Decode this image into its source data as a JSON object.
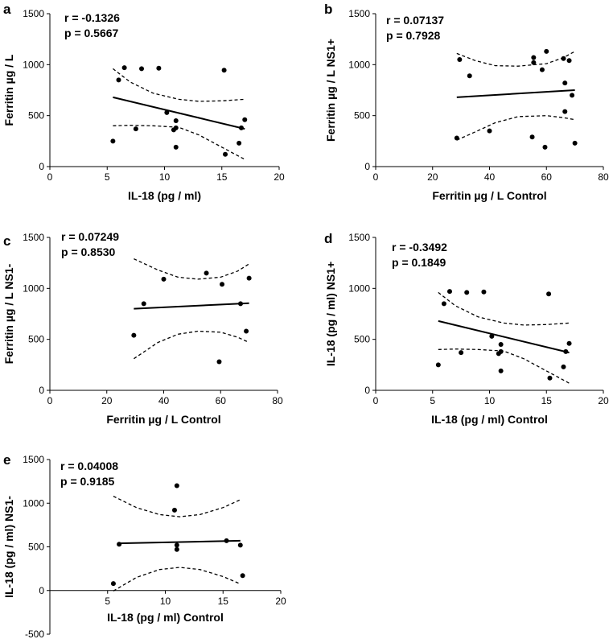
{
  "chart_data": [
    {
      "panel": "a",
      "type": "scatter",
      "xlabel": "IL-18 (pg / ml)",
      "ylabel": "Ferritin µg / L",
      "stats": [
        "r = -0.1326",
        "p = 0.5667"
      ],
      "xlim": [
        0,
        20
      ],
      "ylim": [
        0,
        1500
      ],
      "xticks": [
        0,
        5,
        10,
        15,
        20
      ],
      "yticks": [
        0,
        500,
        1000,
        1500
      ],
      "points": [
        [
          5.5,
          250
        ],
        [
          6.0,
          850
        ],
        [
          6.5,
          970
        ],
        [
          7.5,
          370
        ],
        [
          8.0,
          960
        ],
        [
          9.5,
          965
        ],
        [
          10.2,
          530
        ],
        [
          10.8,
          360
        ],
        [
          11.0,
          380
        ],
        [
          11.0,
          450
        ],
        [
          11.0,
          190
        ],
        [
          15.2,
          945
        ],
        [
          15.3,
          120
        ],
        [
          16.5,
          230
        ],
        [
          16.7,
          380
        ],
        [
          17.0,
          460
        ]
      ],
      "fit": {
        "x": [
          5.5,
          17.0
        ],
        "y": [
          680,
          370
        ]
      },
      "ci_upper": [
        [
          5.5,
          960
        ],
        [
          7,
          830
        ],
        [
          9,
          720
        ],
        [
          11.25,
          660
        ],
        [
          13,
          640
        ],
        [
          15,
          645
        ],
        [
          17.0,
          660
        ]
      ],
      "ci_lower": [
        [
          5.5,
          400
        ],
        [
          7,
          405
        ],
        [
          9,
          400
        ],
        [
          11.25,
          385
        ],
        [
          13,
          310
        ],
        [
          15,
          190
        ],
        [
          17.0,
          70
        ]
      ]
    },
    {
      "panel": "b",
      "type": "scatter",
      "xlabel": "Ferritin µg / L Control",
      "ylabel": "Ferritin µg / L NS1+",
      "stats": [
        "r = 0.07137",
        "p = 0.7928"
      ],
      "xlim": [
        0,
        80
      ],
      "ylim": [
        0,
        1500
      ],
      "xticks": [
        0,
        20,
        40,
        60,
        80
      ],
      "yticks": [
        0,
        500,
        1000,
        1500
      ],
      "points": [
        [
          28.5,
          280
        ],
        [
          29.5,
          1050
        ],
        [
          33,
          890
        ],
        [
          40,
          350
        ],
        [
          55,
          290
        ],
        [
          55.5,
          1070
        ],
        [
          55.5,
          1020
        ],
        [
          58.5,
          950
        ],
        [
          59.5,
          190
        ],
        [
          60,
          1130
        ],
        [
          66,
          1060
        ],
        [
          66.5,
          820
        ],
        [
          66.5,
          540
        ],
        [
          68,
          1040
        ],
        [
          69,
          700
        ],
        [
          70,
          230
        ]
      ],
      "fit": {
        "x": [
          28.5,
          70
        ],
        "y": [
          680,
          750
        ]
      },
      "ci_upper": [
        [
          28.5,
          1110
        ],
        [
          35,
          1040
        ],
        [
          42,
          990
        ],
        [
          50,
          985
        ],
        [
          60,
          1010
        ],
        [
          66,
          1070
        ],
        [
          70,
          1130
        ]
      ],
      "ci_lower": [
        [
          28.5,
          260
        ],
        [
          35,
          340
        ],
        [
          42,
          430
        ],
        [
          50,
          490
        ],
        [
          60,
          500
        ],
        [
          66,
          480
        ],
        [
          70,
          460
        ]
      ]
    },
    {
      "panel": "c",
      "type": "scatter",
      "xlabel": "Ferritin µg / L Control",
      "ylabel": "Ferritin µg / L NS1-",
      "stats": [
        "r = 0.07249",
        "p = 0.8530"
      ],
      "xlim": [
        0,
        80
      ],
      "ylim": [
        0,
        1500
      ],
      "xticks": [
        0,
        20,
        40,
        60,
        80
      ],
      "yticks": [
        0,
        500,
        1000,
        1500
      ],
      "points": [
        [
          29.5,
          540
        ],
        [
          33,
          850
        ],
        [
          40,
          1090
        ],
        [
          55,
          1150
        ],
        [
          59.5,
          280
        ],
        [
          60.5,
          1040
        ],
        [
          67,
          850
        ],
        [
          69,
          580
        ],
        [
          70,
          1100
        ]
      ],
      "fit": {
        "x": [
          29.5,
          70
        ],
        "y": [
          800,
          855
        ]
      },
      "ci_upper": [
        [
          29.5,
          1290
        ],
        [
          38,
          1180
        ],
        [
          45,
          1110
        ],
        [
          52,
          1090
        ],
        [
          60,
          1110
        ],
        [
          66,
          1170
        ],
        [
          70,
          1240
        ]
      ],
      "ci_lower": [
        [
          29.5,
          310
        ],
        [
          38,
          470
        ],
        [
          45,
          550
        ],
        [
          52,
          580
        ],
        [
          60,
          570
        ],
        [
          66,
          520
        ],
        [
          70,
          470
        ]
      ]
    },
    {
      "panel": "d",
      "type": "scatter",
      "xlabel": "IL-18 (pg / ml) Control",
      "ylabel": "IL-18 (pg / ml) NS1+",
      "stats": [
        "r = -0.3492",
        "p = 0.1849"
      ],
      "xlim": [
        0,
        20
      ],
      "ylim": [
        0,
        1500
      ],
      "xticks": [
        0,
        5,
        10,
        15,
        20
      ],
      "yticks": [
        0,
        500,
        1000,
        1500
      ],
      "points": [
        [
          5.5,
          250
        ],
        [
          6.0,
          850
        ],
        [
          6.5,
          970
        ],
        [
          7.5,
          370
        ],
        [
          8.0,
          960
        ],
        [
          9.5,
          965
        ],
        [
          10.2,
          530
        ],
        [
          10.8,
          360
        ],
        [
          11.0,
          380
        ],
        [
          11.0,
          450
        ],
        [
          11.0,
          190
        ],
        [
          15.2,
          945
        ],
        [
          15.3,
          120
        ],
        [
          16.5,
          230
        ],
        [
          16.7,
          380
        ],
        [
          17.0,
          460
        ]
      ],
      "fit": {
        "x": [
          5.5,
          17.0
        ],
        "y": [
          680,
          370
        ]
      },
      "ci_upper": [
        [
          5.5,
          960
        ],
        [
          7,
          830
        ],
        [
          9,
          720
        ],
        [
          11.25,
          660
        ],
        [
          13,
          640
        ],
        [
          15,
          645
        ],
        [
          17.0,
          660
        ]
      ],
      "ci_lower": [
        [
          5.5,
          400
        ],
        [
          7,
          405
        ],
        [
          9,
          400
        ],
        [
          11.25,
          385
        ],
        [
          13,
          310
        ],
        [
          15,
          190
        ],
        [
          17.0,
          70
        ]
      ]
    },
    {
      "panel": "e",
      "type": "scatter",
      "xlabel": "IL-18 (pg / ml) Control",
      "ylabel": "IL-18 (pg / ml) NS1-",
      "stats": [
        "r = 0.04008",
        "p = 0.9185"
      ],
      "xlim": [
        0,
        20
      ],
      "ylim": [
        -500,
        1500
      ],
      "xticks": [
        5,
        10,
        15,
        20
      ],
      "yticks": [
        -500,
        0,
        500,
        1000,
        1500
      ],
      "points": [
        [
          5.5,
          80
        ],
        [
          6.0,
          530
        ],
        [
          10.8,
          920
        ],
        [
          11.0,
          1200
        ],
        [
          11.0,
          520
        ],
        [
          11.0,
          470
        ],
        [
          15.3,
          570
        ],
        [
          16.5,
          520
        ],
        [
          16.7,
          170
        ]
      ],
      "fit": {
        "x": [
          6.0,
          16.5
        ],
        "y": [
          540,
          570
        ]
      },
      "ci_upper": [
        [
          5.5,
          1080
        ],
        [
          7.5,
          950
        ],
        [
          9.5,
          870
        ],
        [
          11.25,
          845
        ],
        [
          13,
          870
        ],
        [
          15,
          950
        ],
        [
          16.5,
          1040
        ]
      ],
      "ci_lower": [
        [
          5.5,
          -5
        ],
        [
          7.5,
          150
        ],
        [
          9.5,
          240
        ],
        [
          11.25,
          265
        ],
        [
          13,
          240
        ],
        [
          15,
          160
        ],
        [
          16.5,
          75
        ]
      ]
    }
  ]
}
